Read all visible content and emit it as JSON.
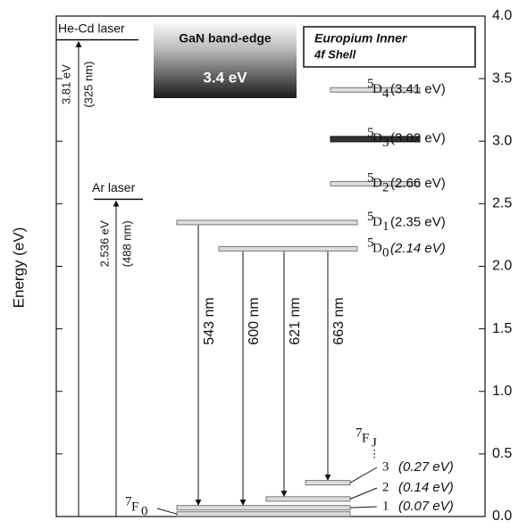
{
  "axis": {
    "title": "Energy (eV)",
    "ylim": [
      0,
      4
    ],
    "yticks": [
      {
        "value": 0,
        "label": "0.0"
      },
      {
        "value": 0.5,
        "label": "0.5"
      },
      {
        "value": 1,
        "label": "1.0"
      },
      {
        "value": 1.5,
        "label": "1.5"
      },
      {
        "value": 2,
        "label": "2.0"
      },
      {
        "value": 2.5,
        "label": "2.5"
      },
      {
        "value": 3,
        "label": "3.0"
      },
      {
        "value": 3.5,
        "label": "3.5"
      },
      {
        "value": 4,
        "label": "4.0"
      }
    ]
  },
  "lasers": [
    {
      "name": "He-Cd laser",
      "energy": 3.81,
      "energy_label": "3.81 eV",
      "wavelength": "(325 nm)"
    },
    {
      "name": "Ar laser",
      "energy": 2.536,
      "energy_label": "2.536 eV",
      "wavelength": "(488 nm)"
    }
  ],
  "gan_box": {
    "title": "GaN band-edge",
    "value": "3.4 eV"
  },
  "eu_box": {
    "title": "Europium Inner",
    "subtitle": "4f Shell"
  },
  "levels": [
    {
      "multiplicity": "5",
      "letter": "D",
      "j": "4",
      "energy": 3.41,
      "energy_label": "(3.41 eV)"
    },
    {
      "multiplicity": "5",
      "letter": "D",
      "j": "3",
      "energy": 3.02,
      "energy_label": "(3.02 eV)"
    },
    {
      "multiplicity": "5",
      "letter": "D",
      "j": "2",
      "energy": 2.66,
      "energy_label": "(2.66 eV)"
    },
    {
      "multiplicity": "5",
      "letter": "D",
      "j": "1",
      "energy": 2.35,
      "energy_label": "(2.35 eV)"
    },
    {
      "multiplicity": "5",
      "letter": "D",
      "j": "0",
      "energy": 2.14,
      "energy_label": "(2.14 eV)"
    },
    {
      "j": "3",
      "energy": 0.27,
      "energy_label": "(0.27 eV)"
    },
    {
      "j": "2",
      "energy": 0.14,
      "energy_label": "(0.14 eV)"
    },
    {
      "j": "1",
      "energy": 0.07,
      "energy_label": "(0.07 eV)"
    },
    {
      "multiplicity": "7",
      "letter": "F",
      "j": "0",
      "energy": 0.02
    }
  ],
  "group_label": {
    "multiplicity": "7",
    "letter": "F",
    "j": "J"
  },
  "transitions": [
    {
      "label": "543 nm"
    },
    {
      "label": "600 nm"
    },
    {
      "label": "621 nm"
    },
    {
      "label": "663 nm"
    }
  ]
}
